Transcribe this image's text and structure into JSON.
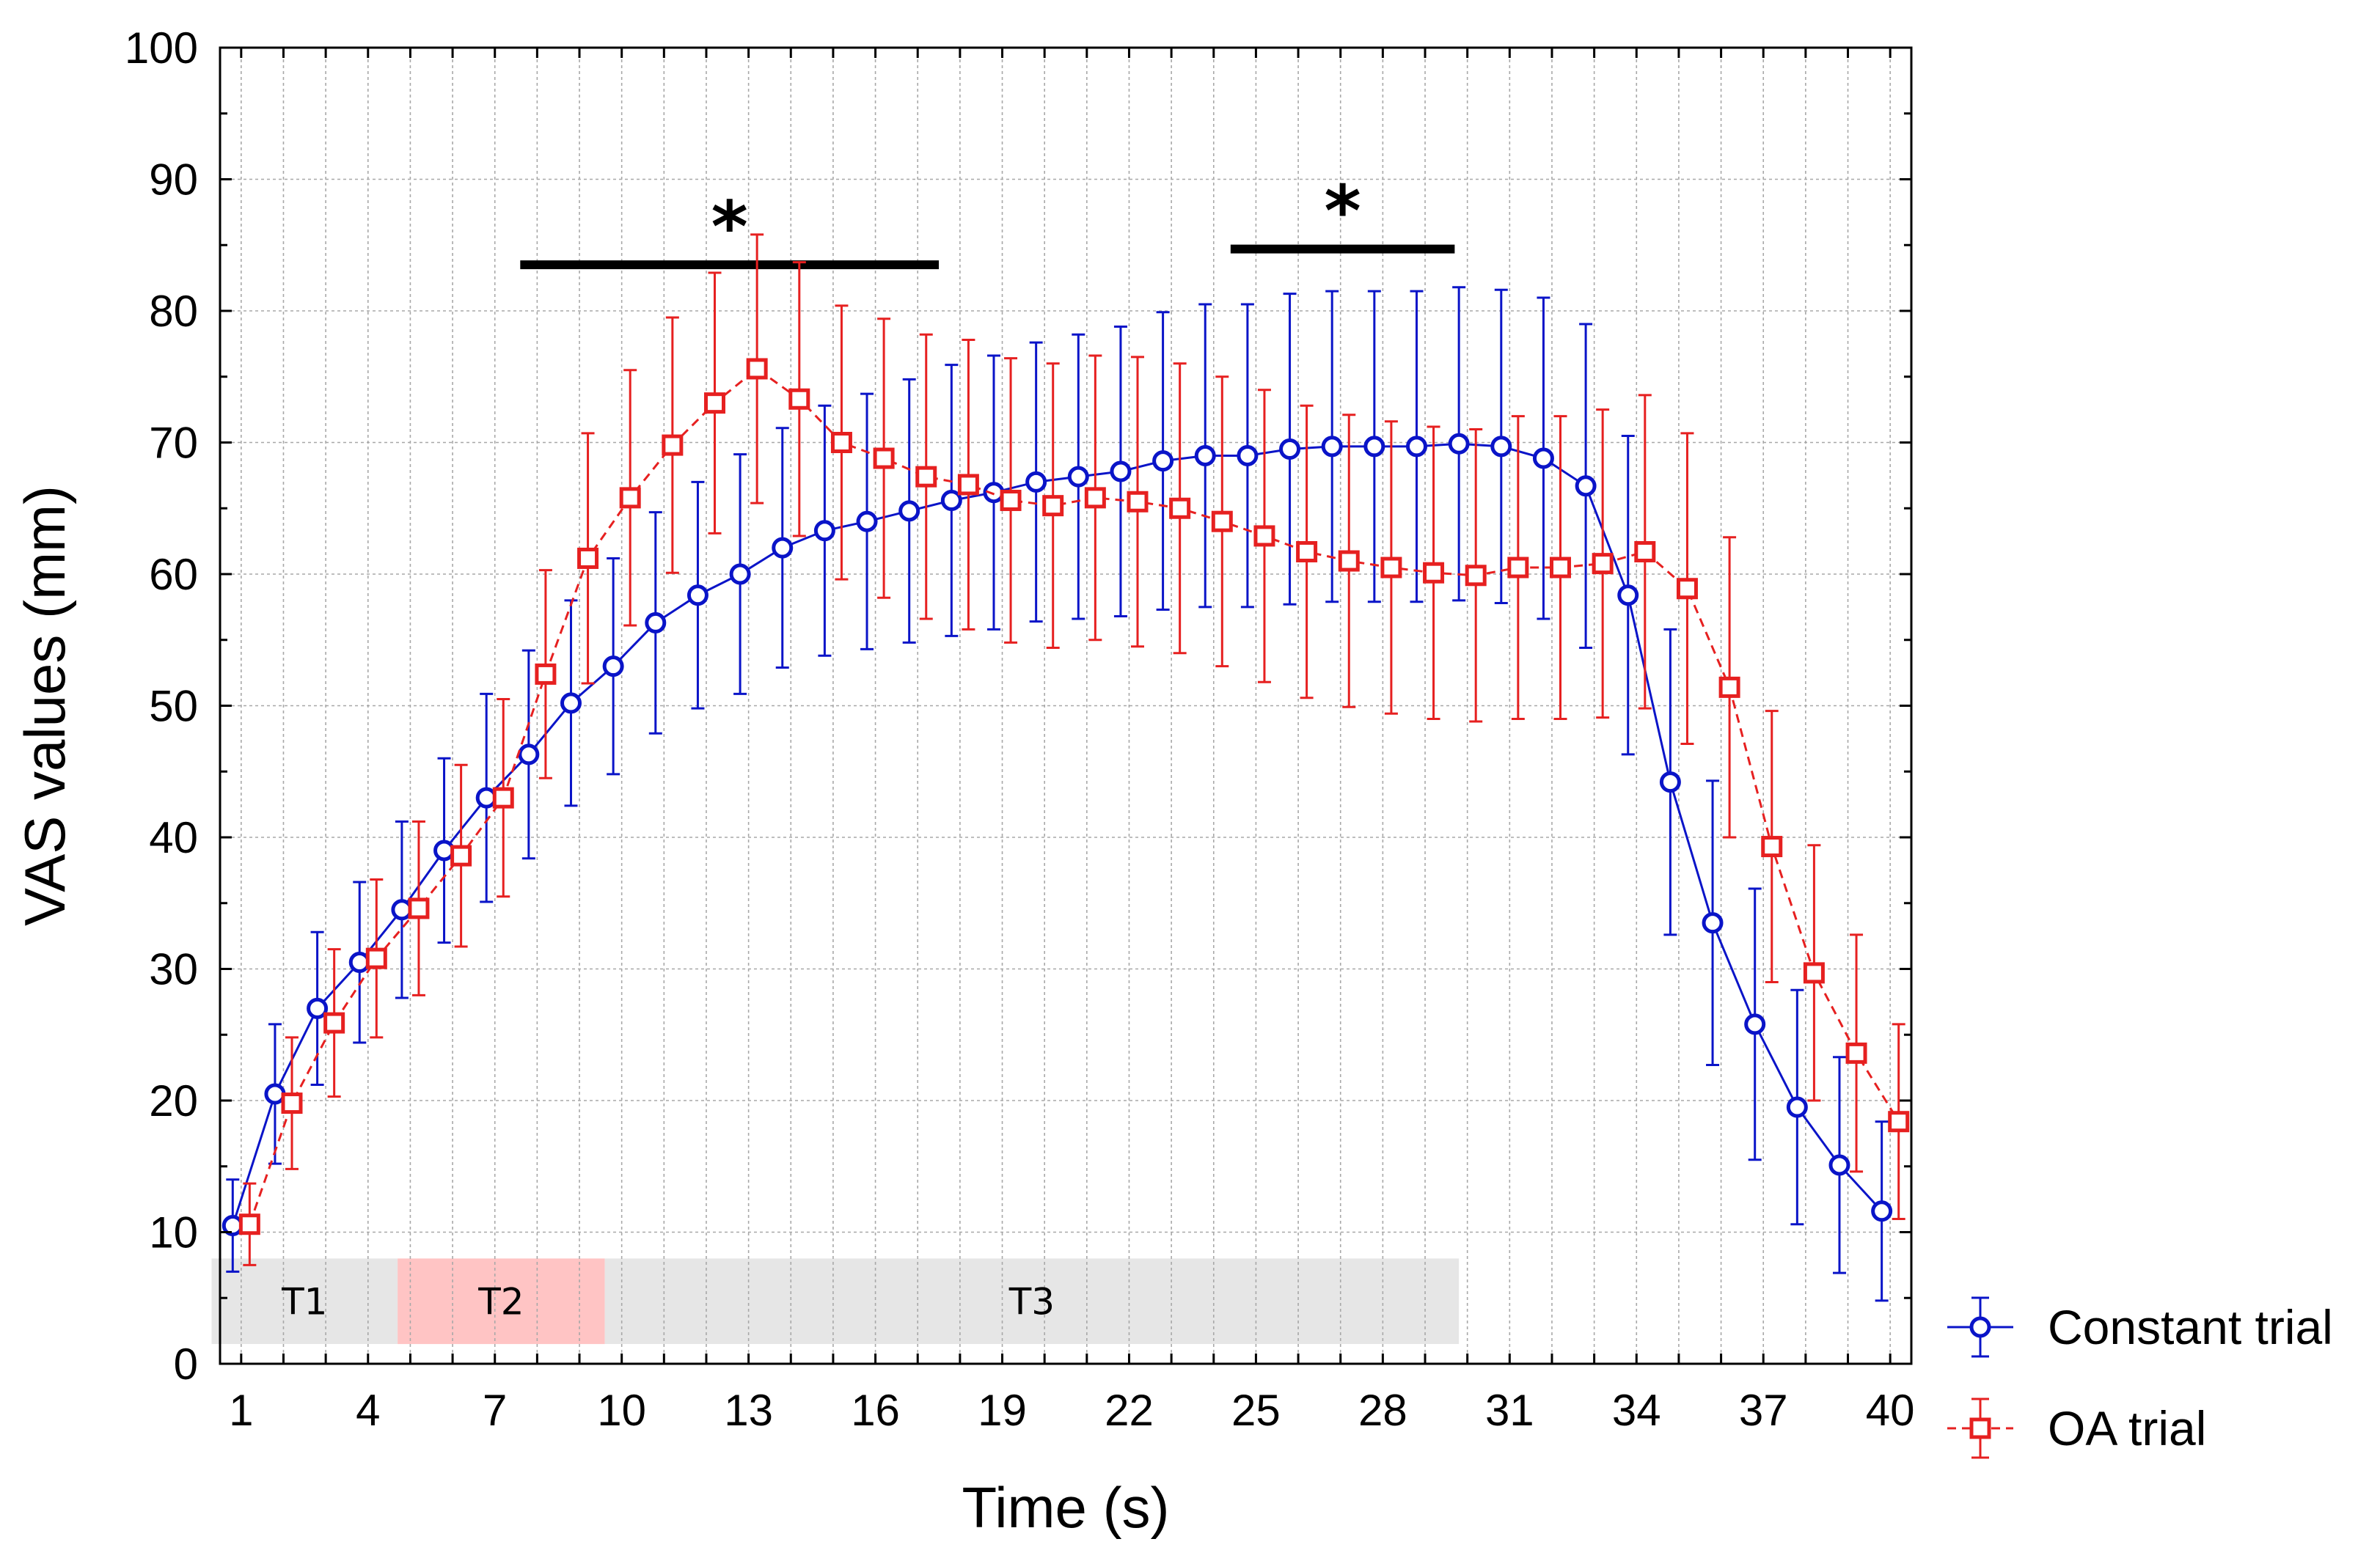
{
  "chart_data": {
    "type": "line",
    "title": "",
    "xlabel": "Time (s)",
    "ylabel": "VAS values (mm)",
    "xlim": [
      0.5,
      40.5
    ],
    "ylim": [
      0,
      100
    ],
    "x_ticks": [
      "1",
      "4",
      "7",
      "10",
      "13",
      "16",
      "19",
      "22",
      "25",
      "28",
      "31",
      "34",
      "37",
      "40"
    ],
    "y_ticks": [
      "0",
      "10",
      "20",
      "30",
      "40",
      "50",
      "60",
      "70",
      "80",
      "90",
      "100"
    ],
    "grid": true,
    "legend_position": "bottom-right outside",
    "colors": {
      "constant": "#0a14c8",
      "oa": "#e62020",
      "region_gray": "#e6e6e6",
      "region_pink": "#ffc4c4"
    },
    "regions": [
      {
        "label": "T1",
        "x_start": 0.3,
        "x_end": 4.7,
        "y_start": 1.5,
        "y_end": 8.0,
        "color": "#e6e6e6"
      },
      {
        "label": "T2",
        "x_start": 4.7,
        "x_end": 9.6,
        "y_start": 1.5,
        "y_end": 8.0,
        "color": "#ffc4c4"
      },
      {
        "label": "T3",
        "x_start": 9.6,
        "x_end": 29.8,
        "y_start": 1.5,
        "y_end": 8.0,
        "color": "#e6e6e6"
      }
    ],
    "significance": [
      {
        "label": "*",
        "x_start": 7.6,
        "x_end": 17.5,
        "y": 83.5
      },
      {
        "label": "*",
        "x_start": 24.4,
        "x_end": 29.7,
        "y": 84.7
      }
    ],
    "series": [
      {
        "name": "Constant trial",
        "marker": "circle",
        "line_style": "solid",
        "x_offset": -0.2,
        "values": [
          10.5,
          20.5,
          27.0,
          30.5,
          34.5,
          39.0,
          43.0,
          46.3,
          50.2,
          53.0,
          56.3,
          58.4,
          60.0,
          62.0,
          63.3,
          64.0,
          64.8,
          65.6,
          66.2,
          67.0,
          67.4,
          67.8,
          68.6,
          69.0,
          69.0,
          69.5,
          69.7,
          69.7,
          69.7,
          69.9,
          69.7,
          68.8,
          66.7,
          58.4,
          44.2,
          33.5,
          25.8,
          19.5,
          15.1,
          11.6
        ],
        "errors": [
          3.5,
          5.3,
          5.8,
          6.1,
          6.7,
          7.0,
          7.9,
          7.9,
          7.8,
          8.2,
          8.4,
          8.6,
          9.1,
          9.1,
          9.5,
          9.7,
          10.0,
          10.3,
          10.4,
          10.6,
          10.8,
          11.0,
          11.3,
          11.5,
          11.5,
          11.8,
          11.8,
          11.8,
          11.8,
          11.9,
          11.9,
          12.2,
          12.3,
          12.1,
          11.6,
          10.8,
          10.3,
          8.9,
          8.2,
          6.8
        ]
      },
      {
        "name": "OA trial",
        "marker": "square",
        "line_style": "dashed",
        "x_offset": 0.2,
        "values": [
          10.6,
          19.8,
          25.9,
          30.8,
          34.6,
          38.6,
          43.0,
          52.4,
          61.2,
          65.8,
          69.8,
          73.0,
          75.6,
          73.3,
          70.0,
          68.8,
          67.4,
          66.8,
          65.6,
          65.2,
          65.8,
          65.5,
          65.0,
          64.0,
          62.9,
          61.7,
          61.0,
          60.5,
          60.1,
          59.9,
          60.5,
          60.5,
          60.8,
          61.7,
          58.9,
          51.4,
          39.3,
          29.7,
          23.6,
          18.4
        ],
        "errors": [
          3.1,
          5.0,
          5.6,
          6.0,
          6.6,
          6.9,
          7.5,
          7.9,
          9.5,
          9.7,
          9.7,
          9.9,
          10.2,
          10.4,
          10.4,
          10.6,
          10.8,
          11.0,
          10.8,
          10.8,
          10.8,
          11.0,
          11.0,
          11.0,
          11.1,
          11.1,
          11.1,
          11.1,
          11.1,
          11.1,
          11.5,
          11.5,
          11.7,
          11.9,
          11.8,
          11.4,
          10.3,
          9.7,
          9.0,
          7.4
        ]
      }
    ]
  }
}
